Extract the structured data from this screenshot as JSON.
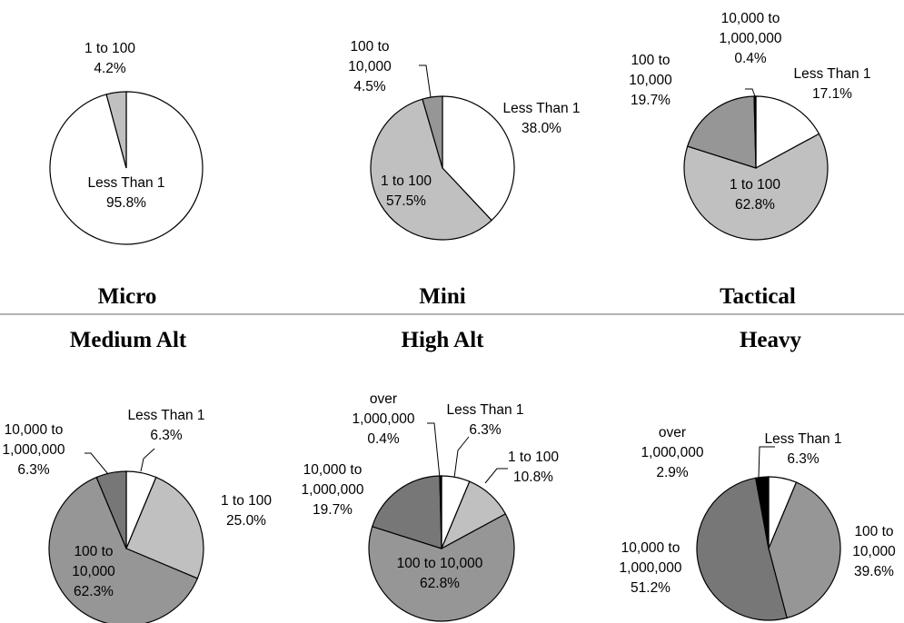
{
  "chart_data": [
    {
      "type": "pie",
      "title": "Micro",
      "slices": [
        {
          "label": "Less Than 1",
          "value": 95.8,
          "value_label": "95.8%",
          "color": "#ffffff"
        },
        {
          "label": "1 to 100",
          "value": 4.2,
          "value_label": "4.2%",
          "color": "#c0c0c0"
        }
      ]
    },
    {
      "type": "pie",
      "title": "Mini",
      "slices": [
        {
          "label": "Less Than 1",
          "value": 38.0,
          "value_label": "38.0%",
          "color": "#ffffff"
        },
        {
          "label": "1 to 100",
          "value": 57.5,
          "value_label": "57.5%",
          "color": "#c0c0c0"
        },
        {
          "label": "100 to 10,000",
          "value": 4.5,
          "value_label": "4.5%",
          "color": "#969696"
        }
      ]
    },
    {
      "type": "pie",
      "title": "Tactical",
      "slices": [
        {
          "label": "Less Than 1",
          "value": 17.1,
          "value_label": "17.1%",
          "color": "#ffffff"
        },
        {
          "label": "1 to 100",
          "value": 62.8,
          "value_label": "62.8%",
          "color": "#c0c0c0"
        },
        {
          "label": "100 to 10,000",
          "value": 19.7,
          "value_label": "19.7%",
          "color": "#969696"
        },
        {
          "label": "10,000 to 1,000,000",
          "value": 0.4,
          "value_label": "0.4%",
          "color": "#000000"
        }
      ]
    },
    {
      "type": "pie",
      "title": "Medium Alt",
      "slices": [
        {
          "label": "Less Than 1",
          "value": 6.3,
          "value_label": "6.3%",
          "color": "#ffffff"
        },
        {
          "label": "1 to 100",
          "value": 25.0,
          "value_label": "25.0%",
          "color": "#c0c0c0"
        },
        {
          "label": "100 to 10,000",
          "value": 62.3,
          "value_label": "62.3%",
          "color": "#969696"
        },
        {
          "label": "10,000 to 1,000,000",
          "value": 6.3,
          "value_label": "6.3%",
          "color": "#777777"
        }
      ]
    },
    {
      "type": "pie",
      "title": "High Alt",
      "slices": [
        {
          "label": "Less Than 1",
          "value": 6.3,
          "value_label": "6.3%",
          "color": "#ffffff"
        },
        {
          "label": "1 to 100",
          "value": 10.8,
          "value_label": "10.8%",
          "color": "#c0c0c0"
        },
        {
          "label": "100 to 10,000",
          "value": 62.8,
          "value_label": "62.8%",
          "color": "#969696"
        },
        {
          "label": "10,000 to 1,000,000",
          "value": 19.7,
          "value_label": "19.7%",
          "color": "#777777"
        },
        {
          "label": "over 1,000,000",
          "value": 0.4,
          "value_label": "0.4%",
          "color": "#000000"
        }
      ]
    },
    {
      "type": "pie",
      "title": "Heavy",
      "slices": [
        {
          "label": "Less Than 1",
          "value": 6.3,
          "value_label": "6.3%",
          "color": "#ffffff"
        },
        {
          "label": "100 to 10,000",
          "value": 39.6,
          "value_label": "39.6%",
          "color": "#969696"
        },
        {
          "label": "10,000 to 1,000,000",
          "value": 51.2,
          "value_label": "51.2%",
          "color": "#777777"
        },
        {
          "label": "over 1,000,000",
          "value": 2.9,
          "value_label": "2.9%",
          "color": "#000000"
        }
      ]
    }
  ]
}
